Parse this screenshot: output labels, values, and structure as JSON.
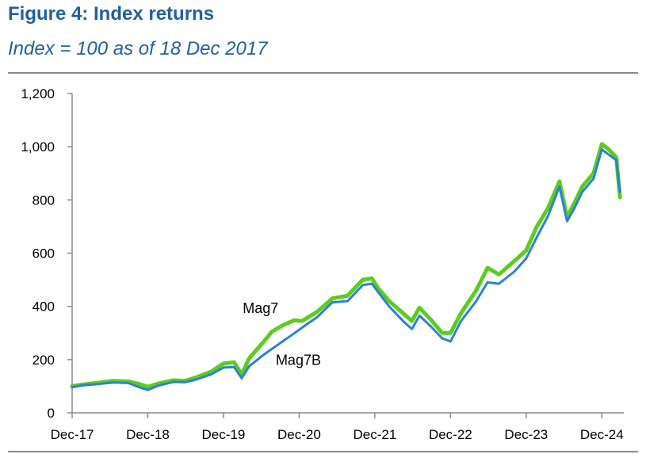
{
  "header": {
    "title": "Figure 4: Index returns",
    "subtitle": "Index = 100 as of 18 Dec 2017"
  },
  "colors": {
    "mag7": "#5ccc1f",
    "mag7b": "#2a82d6",
    "axis": "#8a8a8a",
    "title": "#1f5fa6"
  },
  "chart_data": {
    "type": "line",
    "title": "Figure 4: Index returns",
    "subtitle": "Index = 100 as of 18 Dec 2017",
    "xlabel": "",
    "ylabel": "",
    "xlim": [
      2017.96,
      2025.25
    ],
    "ylim": [
      0,
      1200
    ],
    "x_ticks": [
      {
        "x": 2017.96,
        "label": "Dec-17"
      },
      {
        "x": 2018.96,
        "label": "Dec-18"
      },
      {
        "x": 2019.96,
        "label": "Dec-19"
      },
      {
        "x": 2020.96,
        "label": "Dec-20"
      },
      {
        "x": 2021.96,
        "label": "Dec-21"
      },
      {
        "x": 2022.96,
        "label": "Dec-22"
      },
      {
        "x": 2023.96,
        "label": "Dec-23"
      },
      {
        "x": 2024.96,
        "label": "Dec-24"
      }
    ],
    "y_ticks": [
      {
        "y": 0,
        "label": "0"
      },
      {
        "y": 200,
        "label": "200"
      },
      {
        "y": 400,
        "label": "400"
      },
      {
        "y": 600,
        "label": "600"
      },
      {
        "y": 800,
        "label": "800"
      },
      {
        "y": 1000,
        "label": "1,000"
      },
      {
        "y": 1200,
        "label": "1,200"
      }
    ],
    "grid": false,
    "legend": "inline labels",
    "series": [
      {
        "name": "Mag7",
        "x": [
          2017.96,
          2018.1,
          2018.3,
          2018.5,
          2018.7,
          2018.85,
          2018.96,
          2019.1,
          2019.3,
          2019.45,
          2019.6,
          2019.8,
          2019.96,
          2020.1,
          2020.2,
          2020.3,
          2020.5,
          2020.6,
          2020.75,
          2020.9,
          2021.0,
          2021.2,
          2021.4,
          2021.6,
          2021.8,
          2021.92,
          2022.0,
          2022.15,
          2022.35,
          2022.45,
          2022.55,
          2022.7,
          2022.85,
          2022.96,
          2023.1,
          2023.3,
          2023.45,
          2023.6,
          2023.8,
          2023.96,
          2024.1,
          2024.25,
          2024.4,
          2024.5,
          2024.6,
          2024.7,
          2024.85,
          2024.96,
          2025.05,
          2025.15,
          2025.2
        ],
        "values": [
          100,
          106,
          113,
          120,
          118,
          108,
          98,
          110,
          122,
          120,
          133,
          155,
          185,
          190,
          145,
          205,
          270,
          305,
          330,
          348,
          345,
          380,
          430,
          440,
          500,
          505,
          470,
          420,
          370,
          345,
          395,
          350,
          300,
          300,
          375,
          460,
          545,
          520,
          570,
          610,
          700,
          770,
          870,
          735,
          790,
          850,
          900,
          1010,
          990,
          960,
          810
        ]
      },
      {
        "name": "Mag7B",
        "x": [
          2017.96,
          2018.1,
          2018.3,
          2018.5,
          2018.7,
          2018.85,
          2018.96,
          2019.1,
          2019.3,
          2019.45,
          2019.6,
          2019.8,
          2019.96,
          2020.1,
          2020.2,
          2020.3,
          2020.5,
          2020.6,
          2020.75,
          2020.9,
          2021.0,
          2021.2,
          2021.4,
          2021.6,
          2021.8,
          2021.92,
          2022.0,
          2022.15,
          2022.35,
          2022.45,
          2022.55,
          2022.7,
          2022.85,
          2022.96,
          2023.1,
          2023.3,
          2023.45,
          2023.6,
          2023.8,
          2023.96,
          2024.1,
          2024.25,
          2024.4,
          2024.5,
          2024.6,
          2024.7,
          2024.85,
          2024.96,
          2025.05,
          2025.15,
          2025.2
        ],
        "values": [
          96,
          103,
          108,
          114,
          112,
          96,
          86,
          102,
          116,
          115,
          125,
          145,
          170,
          172,
          130,
          175,
          220,
          240,
          270,
          300,
          320,
          360,
          415,
          420,
          480,
          485,
          455,
          400,
          340,
          315,
          365,
          325,
          280,
          268,
          345,
          420,
          490,
          485,
          530,
          580,
          660,
          740,
          850,
          720,
          770,
          830,
          880,
          990,
          970,
          950,
          830
        ]
      }
    ],
    "annotations": [
      {
        "text": "Mag7",
        "x": 2020.45,
        "y": 375
      },
      {
        "text": "Mag7B",
        "x": 2020.95,
        "y": 180
      }
    ]
  }
}
